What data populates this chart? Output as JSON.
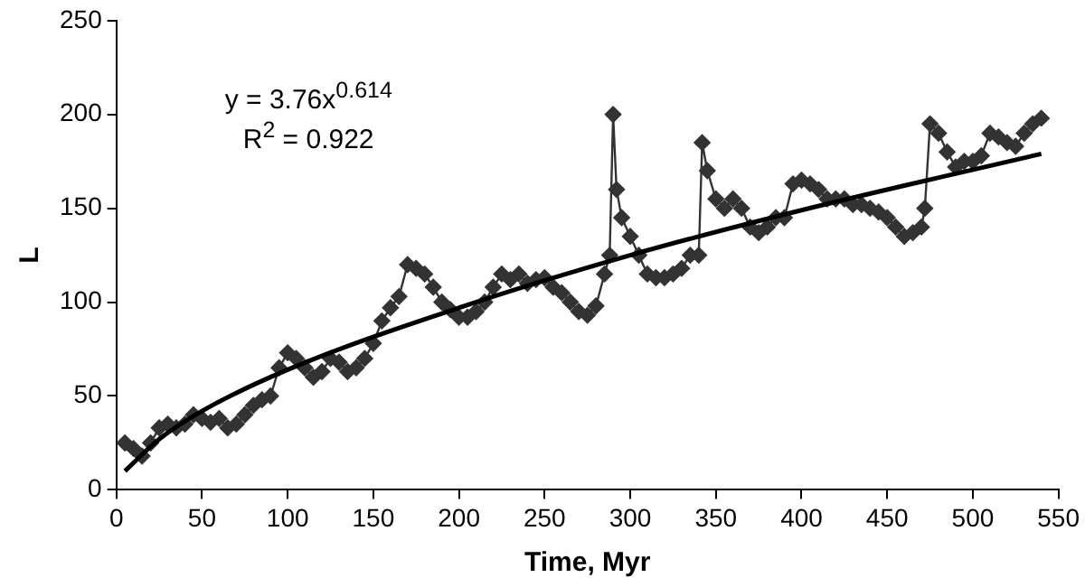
{
  "chart_data": {
    "type": "line",
    "xlabel": "Time, Myr",
    "ylabel": "L",
    "annotations": [
      "y = 3.76x$^{0.614}$",
      "R$^{2}$ = 0.922"
    ],
    "xlim": [
      0,
      550
    ],
    "xticks": [
      0,
      50,
      100,
      150,
      200,
      250,
      300,
      350,
      400,
      450,
      500,
      550
    ],
    "ylim": [
      0,
      250
    ],
    "yticks": [
      0,
      50,
      100,
      150,
      200,
      250
    ],
    "grid": false,
    "legend": false,
    "marker": "diamond",
    "line_style": "solid",
    "series": [
      {
        "color": "#333333",
        "x": [
          5,
          10,
          15,
          20,
          25,
          30,
          35,
          40,
          45,
          50,
          55,
          60,
          65,
          70,
          75,
          80,
          85,
          90,
          95,
          100,
          105,
          110,
          115,
          120,
          125,
          130,
          135,
          140,
          145,
          150,
          155,
          160,
          165,
          170,
          175,
          180,
          185,
          190,
          195,
          200,
          205,
          210,
          215,
          220,
          225,
          230,
          235,
          240,
          245,
          250,
          255,
          260,
          265,
          270,
          275,
          280,
          285,
          288,
          290,
          292,
          295,
          300,
          305,
          310,
          315,
          320,
          325,
          330,
          335,
          340,
          342,
          345,
          350,
          355,
          360,
          365,
          370,
          375,
          380,
          385,
          390,
          395,
          400,
          405,
          410,
          415,
          420,
          425,
          430,
          435,
          440,
          445,
          450,
          455,
          460,
          465,
          470,
          472,
          475,
          480,
          485,
          490,
          495,
          500,
          505,
          510,
          515,
          520,
          525,
          530,
          535,
          540
        ],
        "values": [
          25,
          22,
          18,
          25,
          33,
          35,
          33,
          35,
          40,
          38,
          36,
          38,
          33,
          35,
          40,
          45,
          48,
          50,
          65,
          73,
          70,
          65,
          60,
          63,
          70,
          68,
          63,
          65,
          70,
          78,
          90,
          97,
          103,
          120,
          118,
          115,
          108,
          100,
          96,
          92,
          92,
          95,
          100,
          108,
          115,
          112,
          115,
          110,
          112,
          113,
          108,
          105,
          100,
          95,
          93,
          98,
          115,
          125,
          200,
          160,
          145,
          135,
          125,
          115,
          113,
          113,
          115,
          118,
          125,
          125,
          185,
          170,
          155,
          150,
          155,
          150,
          140,
          137,
          140,
          145,
          145,
          163,
          165,
          163,
          160,
          155,
          155,
          155,
          152,
          152,
          150,
          148,
          145,
          140,
          135,
          137,
          140,
          150,
          195,
          190,
          180,
          172,
          175,
          175,
          178,
          190,
          188,
          185,
          183,
          190,
          195,
          198
        ]
      },
      {
        "type": "line",
        "color": "#000000",
        "marker": "none",
        "x": [
          5,
          25,
          50,
          100,
          200,
          300,
          400,
          540
        ],
        "values": [
          10,
          27,
          42,
          64,
          97,
          125,
          149,
          179
        ]
      }
    ]
  }
}
